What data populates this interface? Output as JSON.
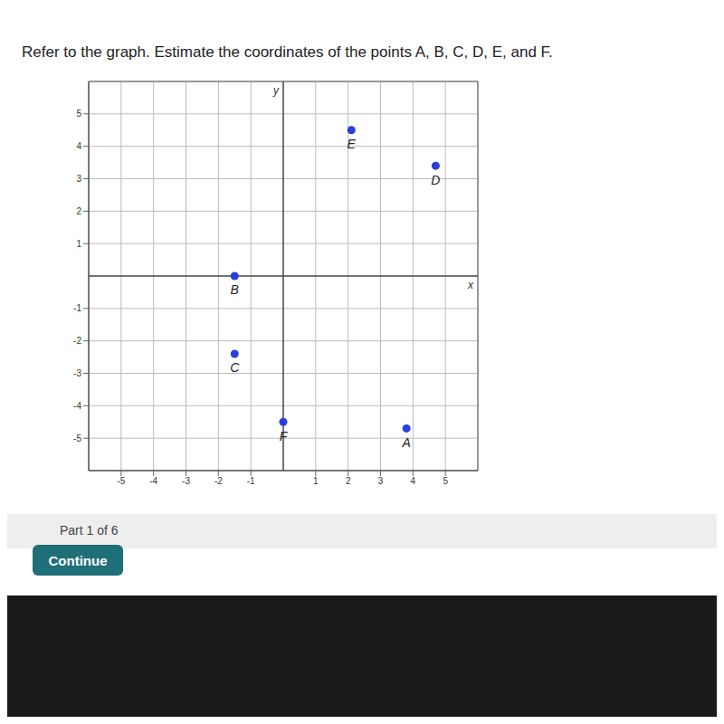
{
  "chart_data": {
    "type": "scatter",
    "title": "Refer to the graph. Estimate the coordinates of the points A, B, C, D, E, and F.",
    "x_label": "x",
    "y_label": "y",
    "x": [
      3.8,
      -1.5,
      -1.5,
      4.7,
      2.1,
      0
    ],
    "values": [
      -4.7,
      0,
      -2.4,
      3.4,
      4.5,
      -4.5
    ],
    "point_labels": [
      "A",
      "B",
      "C",
      "D",
      "E",
      "F"
    ],
    "color": "#2b3fd8",
    "marker": "circle",
    "xlim": [
      -6,
      6
    ],
    "ylim": [
      -6,
      6
    ],
    "xticks": [
      -5,
      -4,
      -3,
      -2,
      -1,
      1,
      2,
      3,
      4,
      5
    ],
    "yticks": [
      -5,
      -4,
      -3,
      -2,
      -1,
      1,
      2,
      3,
      4,
      5
    ],
    "grid": true,
    "annotations": [
      "Part 1 of 6",
      "Continue"
    ]
  }
}
